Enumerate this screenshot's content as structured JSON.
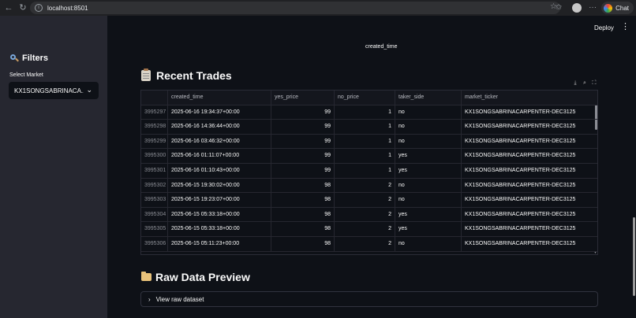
{
  "browser": {
    "url": "localhost:8501",
    "chat_label": "Chat"
  },
  "sidebar": {
    "filters_title": "Filters",
    "select_label": "Select Market",
    "selected_market": "KX1SONGSABRINACA..."
  },
  "header": {
    "deploy_label": "Deploy",
    "menu_glyph": "⋮"
  },
  "main": {
    "stray_label": "created_time",
    "recent_trades_title": "Recent Trades",
    "raw_preview_title": "Raw Data Preview",
    "expander_label": "View raw dataset"
  },
  "table": {
    "columns": [
      "",
      "created_time",
      "yes_price",
      "no_price",
      "taker_side",
      "market_ticker"
    ],
    "rows": [
      [
        "3995297",
        "2025-06-16 19:34:37+00:00",
        "99",
        "1",
        "no",
        "KX1SONGSABRINACARPENTER-DEC3125"
      ],
      [
        "3995298",
        "2025-06-16 14:36:44+00:00",
        "99",
        "1",
        "no",
        "KX1SONGSABRINACARPENTER-DEC3125"
      ],
      [
        "3995299",
        "2025-06-16 03:46:32+00:00",
        "99",
        "1",
        "no",
        "KX1SONGSABRINACARPENTER-DEC3125"
      ],
      [
        "3995300",
        "2025-06-16 01:11:07+00:00",
        "99",
        "1",
        "yes",
        "KX1SONGSABRINACARPENTER-DEC3125"
      ],
      [
        "3995301",
        "2025-06-16 01:10:43+00:00",
        "99",
        "1",
        "yes",
        "KX1SONGSABRINACARPENTER-DEC3125"
      ],
      [
        "3995302",
        "2025-06-15 19:30:02+00:00",
        "98",
        "2",
        "no",
        "KX1SONGSABRINACARPENTER-DEC3125"
      ],
      [
        "3995303",
        "2025-06-15 19:23:07+00:00",
        "98",
        "2",
        "no",
        "KX1SONGSABRINACARPENTER-DEC3125"
      ],
      [
        "3995304",
        "2025-06-15 05:33:18+00:00",
        "98",
        "2",
        "yes",
        "KX1SONGSABRINACARPENTER-DEC3125"
      ],
      [
        "3995305",
        "2025-06-15 05:33:18+00:00",
        "98",
        "2",
        "yes",
        "KX1SONGSABRINACARPENTER-DEC3125"
      ],
      [
        "3995306",
        "2025-06-15 05:11:23+00:00",
        "98",
        "2",
        "no",
        "KX1SONGSABRINACARPENTER-DEC3125"
      ]
    ]
  },
  "colors": {
    "app_background": "#0e1117",
    "sidebar_background": "#262730",
    "text": "#fafafa",
    "index_text": "#8b8d94"
  },
  "icons": {
    "filters": "magnifier-icon",
    "recent_trades": "clipboard-icon",
    "raw_preview": "folder-icon",
    "toolbar": [
      "download-icon",
      "search-icon",
      "fullscreen-icon"
    ]
  }
}
